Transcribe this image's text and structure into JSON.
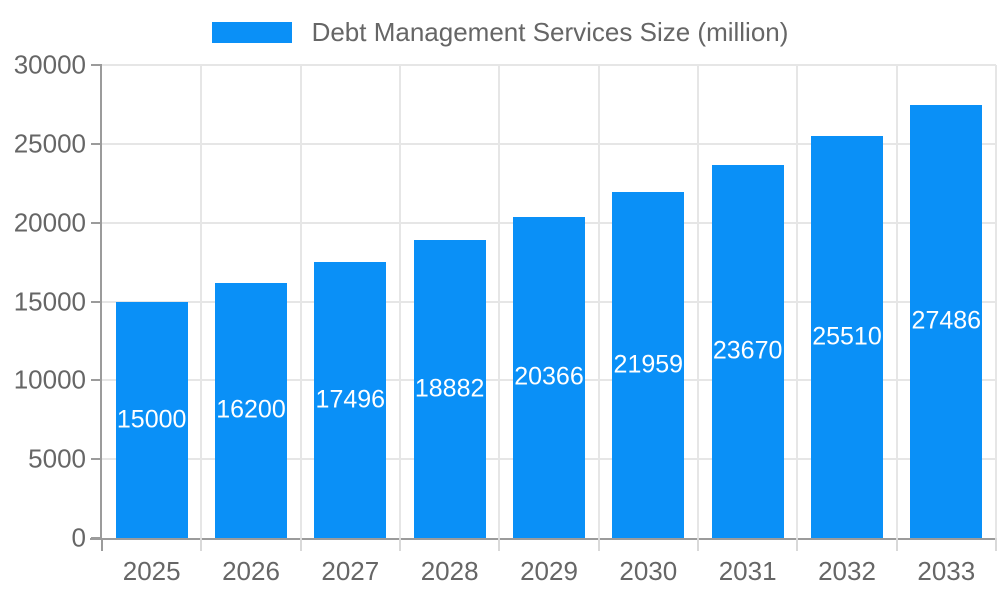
{
  "chart_data": {
    "type": "bar",
    "title": "",
    "legend": "Debt Management Services Size (million)",
    "categories": [
      "2025",
      "2026",
      "2027",
      "2028",
      "2029",
      "2030",
      "2031",
      "2032",
      "2033"
    ],
    "series": [
      {
        "name": "Debt Management Services Size (million)",
        "values": [
          15000,
          16200,
          17496,
          18882,
          20366,
          21959,
          23670,
          25510,
          27486
        ]
      }
    ],
    "value_labels_shown": true,
    "xlabel": "",
    "ylabel": "",
    "ylim": [
      0,
      30000
    ],
    "yticks": [
      0,
      5000,
      10000,
      15000,
      20000,
      25000,
      30000
    ],
    "grid": "horizontal and vertical",
    "legend_position": "top-center",
    "colors": {
      "bar": "#0a90f7",
      "axis": "#9b9b9b",
      "gridline": "#e6e6e6",
      "minor_tick": "#d9d9d9",
      "axis_label": "#666666",
      "value_label": "#ffffff",
      "background": "#ffffff"
    }
  }
}
